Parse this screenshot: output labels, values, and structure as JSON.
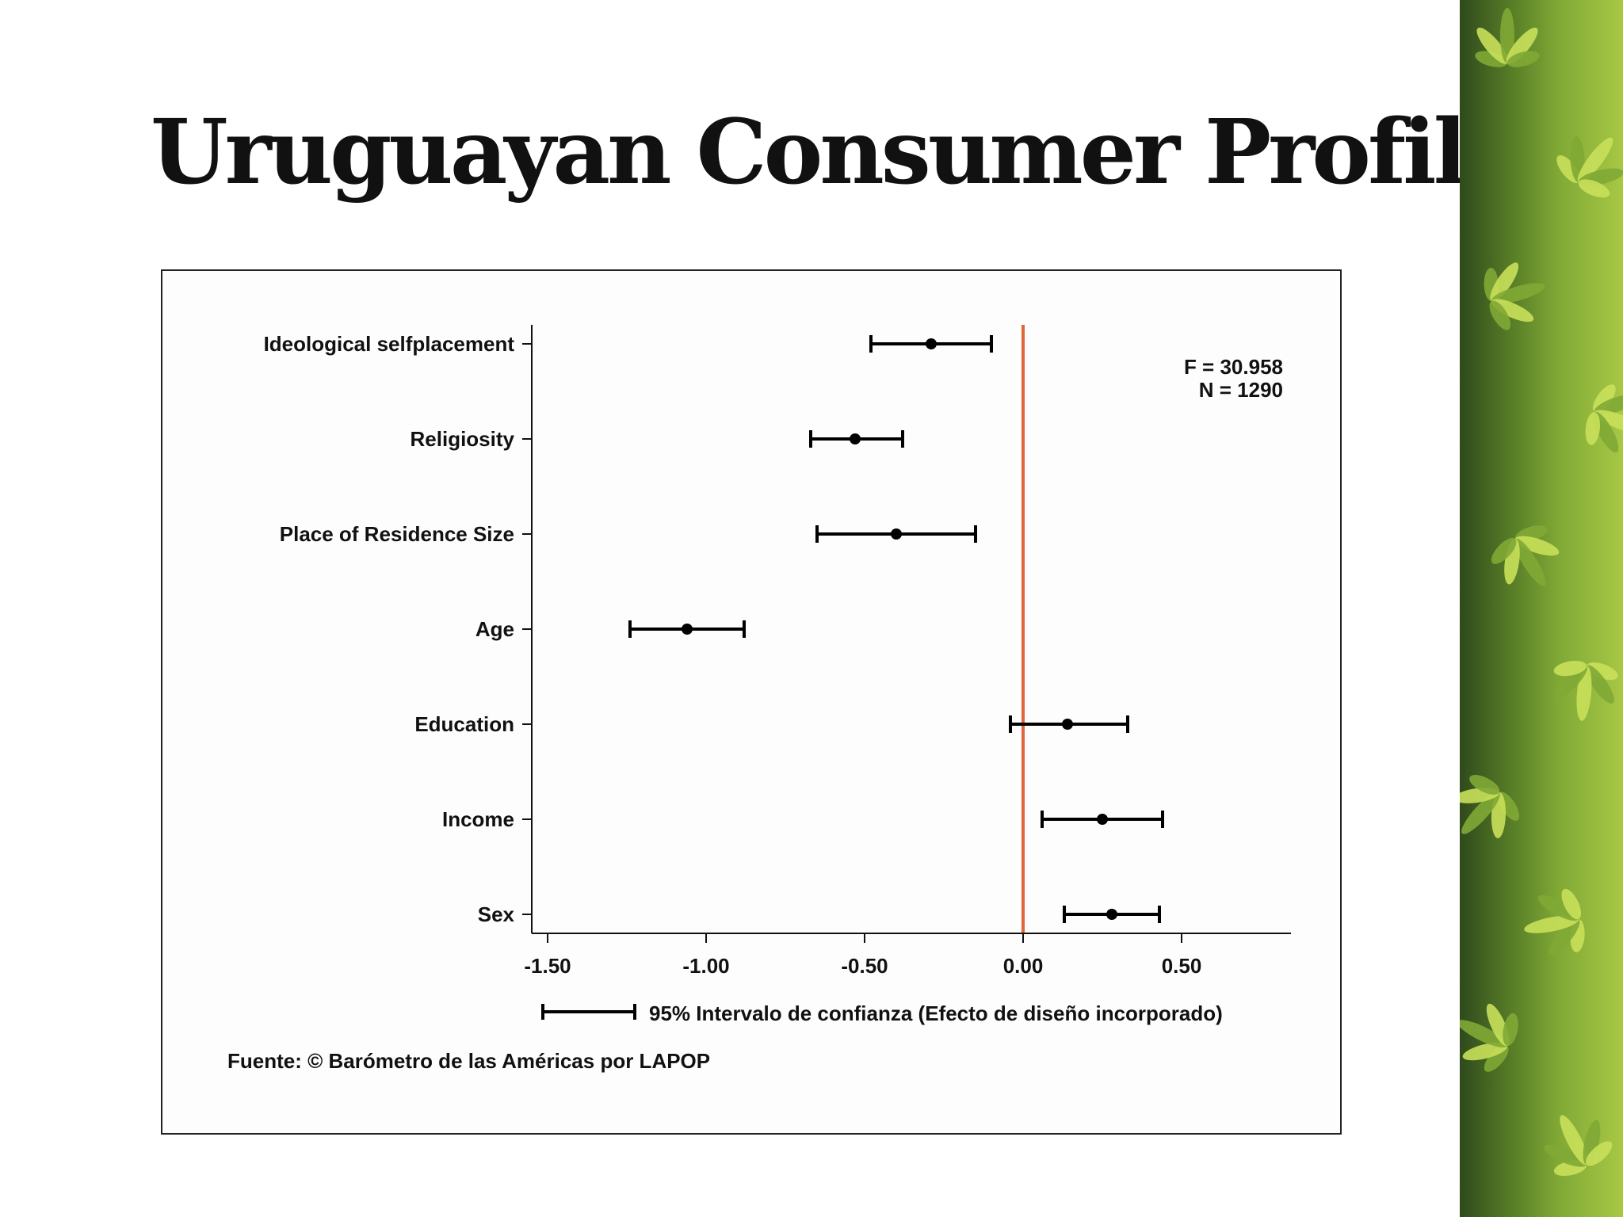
{
  "slide": {
    "title": "Uruguayan Consumer Profile"
  },
  "side_panel": {
    "decor_icon": "cannabis-leaf-photo",
    "colors": {
      "dark": "#2f4a1c",
      "mid": "#7fa835",
      "light": "#c9e05a"
    }
  },
  "colors": {
    "reference_line": "#e0663a",
    "marks": "#000000"
  },
  "chart_data": {
    "type": "scatter",
    "subtype": "coefficient-plot-with-error-bars",
    "title": "",
    "xlabel": "",
    "ylabel": "",
    "xlim": [
      -1.55,
      0.55
    ],
    "x_ticks": [
      -1.5,
      -1.0,
      -0.5,
      0.0,
      0.5
    ],
    "x_tick_labels": [
      "-1.50",
      "-1.00",
      "-0.50",
      "0.00",
      "0.50"
    ],
    "reference_line_x": 0.0,
    "grid": false,
    "categories": [
      "Ideological selfplacement",
      "Religiosity",
      "Place of Residence Size",
      "Age",
      "Education",
      "Income",
      "Sex"
    ],
    "estimates": [
      -0.29,
      -0.53,
      -0.4,
      -1.06,
      0.14,
      0.25,
      0.28
    ],
    "ci_lower": [
      -0.48,
      -0.67,
      -0.65,
      -1.24,
      -0.04,
      0.06,
      0.13
    ],
    "ci_upper": [
      -0.1,
      -0.38,
      -0.15,
      -0.88,
      0.33,
      0.44,
      0.43
    ],
    "stats": {
      "f_line": "F = 30.958",
      "n_line": "N = 1290"
    },
    "legend": {
      "label": "95% Intervalo de confianza (Efecto de diseño incorporado)",
      "placement": "bottom"
    },
    "source": "Fuente: © Barómetro de las Américas por LAPOP"
  }
}
